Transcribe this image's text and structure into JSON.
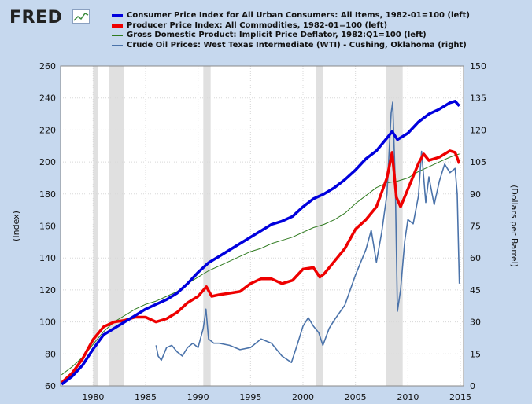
{
  "logo": {
    "text": "FRED",
    "icon": "line-chart-icon"
  },
  "legend": [
    {
      "label": "Consumer Price Index for All Urban Consumers: All Items, 1982-01=100 (left)",
      "color": "#0000dd",
      "width": 4
    },
    {
      "label": "Producer Price Index: All Commodities, 1982-01=100 (left)",
      "color": "#ee0000",
      "width": 4
    },
    {
      "label": "Gross Domestic Product: Implicit Price Deflator, 1982:Q1=100 (left)",
      "color": "#2f7a1f",
      "width": 1
    },
    {
      "label": "Crude Oil Prices: West Texas Intermediate (WTI) - Cushing, Oklahoma (right)",
      "color": "#4b73aa",
      "width": 2
    }
  ],
  "chart_data": {
    "type": "line",
    "ylabel_left": "(Index)",
    "ylabel_right": "(Dollars per Barrel)",
    "xlim": [
      1976.9,
      2015.3
    ],
    "ylim_left": [
      60,
      260
    ],
    "ylim_right": [
      0,
      150
    ],
    "yticks_left": [
      60,
      80,
      100,
      120,
      140,
      160,
      180,
      200,
      220,
      240,
      260
    ],
    "yticks_right": [
      0,
      15,
      30,
      45,
      60,
      75,
      90,
      105,
      120,
      135,
      150
    ],
    "xticks": [
      1980,
      1985,
      1990,
      1995,
      2000,
      2005,
      2010,
      2015
    ],
    "grid": true,
    "recessions": [
      [
        1980.0,
        1980.5
      ],
      [
        1981.5,
        1982.9
      ],
      [
        1990.5,
        1991.2
      ],
      [
        2001.2,
        2001.9
      ],
      [
        2007.9,
        2009.5
      ]
    ],
    "series": [
      {
        "name": "CPI",
        "axis": "left",
        "x": [
          1977,
          1978,
          1979,
          1980,
          1981,
          1982,
          1983,
          1984,
          1985,
          1986,
          1987,
          1988,
          1989,
          1990,
          1991,
          1992,
          1993,
          1994,
          1995,
          1996,
          1997,
          1998,
          1999,
          2000,
          2001,
          2002,
          2003,
          2004,
          2005,
          2006,
          2007,
          2008,
          2008.5,
          2009,
          2010,
          2011,
          2012,
          2013,
          2014,
          2014.5,
          2014.9
        ],
        "y": [
          61,
          66,
          73,
          83,
          92,
          96,
          100,
          104,
          108,
          111,
          114,
          118,
          124,
          131,
          137,
          141,
          145,
          149,
          153,
          157,
          161,
          163,
          166,
          172,
          177,
          180,
          184,
          189,
          195,
          202,
          207,
          215,
          219,
          214,
          218,
          225,
          230,
          233,
          237,
          238,
          235
        ]
      },
      {
        "name": "PPI",
        "axis": "left",
        "x": [
          1977,
          1978,
          1979,
          1980,
          1981,
          1982,
          1983,
          1984,
          1985,
          1986,
          1987,
          1988,
          1989,
          1990,
          1990.8,
          1991.3,
          1992,
          1993,
          1994,
          1995,
          1996,
          1997,
          1998,
          1999,
          2000,
          2001,
          2001.6,
          2002,
          2003,
          2004,
          2005,
          2006,
          2007,
          2008,
          2008.5,
          2008.9,
          2009.3,
          2010,
          2011,
          2011.5,
          2012,
          2013,
          2014,
          2014.5,
          2014.9
        ],
        "y": [
          62,
          68,
          77,
          89,
          97,
          100,
          101,
          103,
          103,
          100,
          102,
          106,
          112,
          116,
          122,
          116,
          117,
          118,
          119,
          124,
          127,
          127,
          124,
          126,
          133,
          134,
          128,
          130,
          138,
          146,
          158,
          164,
          172,
          190,
          206,
          178,
          172,
          183,
          199,
          205,
          201,
          203,
          207,
          206,
          199
        ]
      },
      {
        "name": "GDP Deflator",
        "axis": "left",
        "x": [
          1977,
          1978,
          1979,
          1980,
          1981,
          1982,
          1983,
          1984,
          1985,
          1986,
          1987,
          1988,
          1989,
          1990,
          1991,
          1992,
          1993,
          1994,
          1995,
          1996,
          1997,
          1998,
          1999,
          2000,
          2001,
          2002,
          2003,
          2004,
          2005,
          2006,
          2007,
          2008,
          2009,
          2010,
          2011,
          2012,
          2013,
          2014,
          2014.9
        ],
        "y": [
          67,
          72,
          78,
          86,
          94,
          100,
          104,
          108,
          111,
          113,
          116,
          119,
          124,
          128,
          132,
          135,
          138,
          141,
          144,
          146,
          149,
          151,
          153,
          156,
          159,
          161,
          164,
          168,
          174,
          179,
          184,
          187,
          188,
          190,
          194,
          197,
          200,
          203,
          205
        ]
      },
      {
        "name": "WTI",
        "axis": "right",
        "x": [
          1986.0,
          1986.2,
          1986.5,
          1987,
          1987.5,
          1988,
          1988.5,
          1989,
          1989.5,
          1990,
          1990.5,
          1990.75,
          1991,
          1991.5,
          1992,
          1993,
          1994,
          1995,
          1996,
          1997,
          1998,
          1998.9,
          1999.5,
          2000,
          2000.5,
          2001,
          2001.5,
          2001.9,
          2002.5,
          2003,
          2004,
          2004.5,
          2005,
          2006,
          2006.5,
          2007,
          2007.5,
          2008,
          2008.4,
          2008.55,
          2008.8,
          2009.0,
          2009.3,
          2009.7,
          2010,
          2010.5,
          2011,
          2011.3,
          2011.7,
          2012,
          2012.5,
          2013,
          2013.5,
          2014,
          2014.5,
          2014.7,
          2014.9
        ],
        "y": [
          19,
          14,
          12,
          18,
          19,
          16,
          14,
          18,
          20,
          18,
          27,
          36,
          22,
          20,
          20,
          19,
          17,
          18,
          22,
          20,
          14,
          11,
          20,
          28,
          32,
          28,
          25,
          19,
          27,
          31,
          38,
          45,
          52,
          64,
          73,
          58,
          72,
          90,
          128,
          133,
          95,
          35,
          45,
          68,
          78,
          76,
          89,
          110,
          86,
          98,
          85,
          96,
          104,
          100,
          102,
          90,
          48
        ]
      }
    ]
  }
}
